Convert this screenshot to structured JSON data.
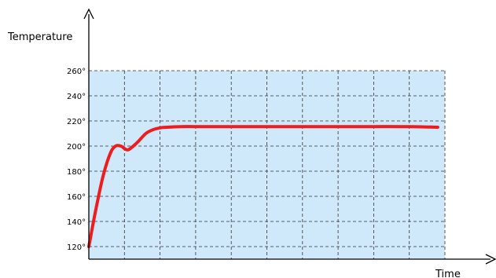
{
  "chart_data": {
    "type": "line",
    "xlabel": "Time",
    "ylabel": "Temperature",
    "y_ticks": [
      "120°",
      "140°",
      "160°",
      "180°",
      "200°",
      "220°",
      "240°",
      "260°"
    ],
    "ylim": [
      110,
      260
    ],
    "xlim": [
      0,
      10
    ],
    "grid": true,
    "colors": {
      "line": "#ee1c1c",
      "plot_background": "#cfe8fa",
      "grid": "#333333"
    },
    "series": [
      {
        "x": [
          0.0,
          0.2,
          0.4,
          0.6,
          0.75,
          0.9,
          1.0,
          1.1,
          1.25,
          1.4,
          1.6,
          1.8,
          2.0,
          2.2,
          2.6,
          3.0,
          4.0,
          5.0,
          6.0,
          7.0,
          8.0,
          9.0,
          9.8
        ],
        "y": [
          120,
          150,
          176,
          194,
          200,
          200,
          198,
          197,
          200,
          204,
          210,
          213,
          214.5,
          215,
          215.5,
          215.5,
          215.5,
          215.5,
          215.5,
          215.5,
          215.5,
          215.5,
          215
        ]
      }
    ]
  }
}
